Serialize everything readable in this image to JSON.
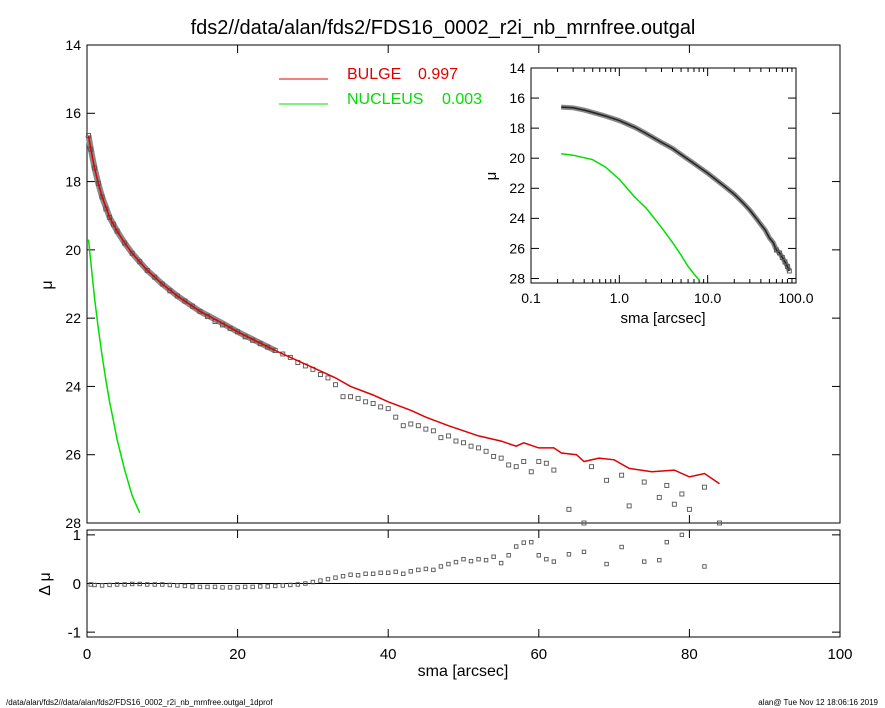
{
  "title": "fds2//data/alan/fds2/FDS16_0002_r2i_nb_mrnfree.outgal",
  "footer_left": "/data/alan/fds2//data/alan/fds2/FDS16_0002_r2i_nb_mrnfree.outgal_1dprof",
  "footer_right": "alan@  Tue Nov 12 18:06:16 2019",
  "colors": {
    "bulge": "#e00000",
    "nucleus": "#00e000",
    "data": "#555555",
    "axes": "#000000"
  },
  "chart_data": [
    {
      "id": "main",
      "type": "scatter",
      "ylabel": "μ",
      "xlim": [
        0,
        100
      ],
      "ylim": [
        28,
        14
      ],
      "xticks": [
        "0",
        "20",
        "40",
        "60",
        "80",
        "100"
      ],
      "yticks": [
        "14",
        "16",
        "18",
        "20",
        "22",
        "24",
        "26",
        "28"
      ],
      "legend": [
        {
          "label": "BULGE",
          "value": "0.997",
          "color": "#e00000"
        },
        {
          "label": "NUCLEUS",
          "value": "0.003",
          "color": "#00e000"
        }
      ],
      "legend_position": "top-center",
      "series": [
        {
          "name": "BULGE",
          "kind": "line",
          "x": [
            0.2,
            0.5,
            1,
            1.5,
            2,
            3,
            4,
            5,
            6,
            8,
            10,
            12,
            15,
            18,
            20,
            25,
            30,
            33,
            35,
            38,
            40,
            43,
            45,
            48,
            50,
            52,
            55,
            57,
            58,
            60,
            62,
            63,
            65,
            66,
            68,
            70,
            72,
            75,
            78,
            80,
            82,
            84
          ],
          "y": [
            16.65,
            17.05,
            17.6,
            18.05,
            18.45,
            19.05,
            19.45,
            19.8,
            20.1,
            20.6,
            21.0,
            21.35,
            21.8,
            22.15,
            22.4,
            22.95,
            23.45,
            23.75,
            24.0,
            24.25,
            24.45,
            24.7,
            24.9,
            25.15,
            25.3,
            25.45,
            25.6,
            25.75,
            25.65,
            25.8,
            25.8,
            25.95,
            26.0,
            26.2,
            26.1,
            26.15,
            26.4,
            26.5,
            26.45,
            26.65,
            26.55,
            26.85
          ]
        },
        {
          "name": "NUCLEUS",
          "kind": "line",
          "x": [
            0.2,
            0.5,
            1,
            1.5,
            2,
            2.5,
            3,
            3.5,
            4,
            5,
            6,
            7,
            8
          ],
          "y": [
            19.7,
            20.35,
            21.4,
            22.3,
            23.1,
            23.8,
            24.45,
            25.0,
            25.55,
            26.45,
            27.2,
            27.7,
            28.1
          ]
        },
        {
          "name": "data",
          "kind": "points",
          "x": [
            0.2,
            0.5,
            1,
            1.5,
            2,
            2.5,
            3,
            3.5,
            4,
            5,
            6,
            7,
            8,
            9,
            10,
            11,
            12,
            13,
            14,
            15,
            16,
            17,
            18,
            19,
            20,
            21,
            22,
            23,
            24,
            25,
            26,
            27,
            28,
            29,
            30,
            31,
            32,
            33,
            34,
            35,
            36,
            37,
            38,
            39,
            40,
            41,
            42,
            43,
            44,
            45,
            46,
            47,
            48,
            49,
            50,
            51,
            52,
            53,
            54,
            55,
            56,
            57,
            58,
            59,
            60,
            61,
            62,
            64,
            66,
            67,
            69,
            71,
            72,
            74,
            76,
            77,
            78,
            79,
            80,
            82,
            84
          ],
          "y": [
            16.65,
            17.05,
            17.6,
            18.05,
            18.45,
            18.8,
            19.05,
            19.25,
            19.45,
            19.8,
            20.1,
            20.35,
            20.6,
            20.8,
            21.0,
            21.2,
            21.35,
            21.5,
            21.65,
            21.8,
            21.95,
            22.1,
            22.2,
            22.3,
            22.4,
            22.55,
            22.65,
            22.75,
            22.85,
            22.95,
            23.05,
            23.15,
            23.3,
            23.4,
            23.5,
            23.65,
            23.75,
            23.95,
            24.3,
            24.3,
            24.35,
            24.45,
            24.5,
            24.6,
            24.65,
            24.9,
            25.15,
            25.1,
            25.15,
            25.25,
            25.3,
            25.5,
            25.45,
            25.6,
            25.65,
            25.75,
            25.8,
            25.9,
            26.05,
            26.1,
            26.3,
            26.35,
            26.2,
            26.5,
            26.2,
            26.25,
            26.45,
            27.6,
            28.0,
            26.35,
            26.75,
            26.6,
            27.5,
            26.8,
            27.25,
            26.9,
            27.45,
            27.15,
            27.6,
            26.95,
            28.0
          ]
        }
      ]
    },
    {
      "id": "residual",
      "type": "scatter",
      "ylabel": "Δ μ",
      "xlabel": "sma [arcsec]",
      "xlim": [
        0,
        100
      ],
      "ylim": [
        -1.1,
        1.1
      ],
      "xticks": [
        "0",
        "20",
        "40",
        "60",
        "80",
        "100"
      ],
      "yticks": [
        "1",
        "0",
        "-1"
      ],
      "zero_line": true,
      "series": [
        {
          "name": "residual",
          "x": [
            0.5,
            1,
            2,
            3,
            4,
            5,
            6,
            7,
            8,
            9,
            10,
            11,
            12,
            13,
            14,
            15,
            16,
            17,
            18,
            19,
            20,
            21,
            22,
            23,
            24,
            25,
            26,
            27,
            28,
            29,
            30,
            31,
            32,
            33,
            34,
            35,
            36,
            37,
            38,
            39,
            40,
            41,
            42,
            43,
            44,
            45,
            46,
            47,
            48,
            49,
            50,
            51,
            52,
            53,
            54,
            55,
            56,
            57,
            58,
            59,
            60,
            61,
            62,
            64,
            66,
            69,
            71,
            74,
            76,
            77,
            79,
            82
          ],
          "y": [
            -0.02,
            -0.03,
            -0.04,
            -0.03,
            -0.02,
            -0.02,
            -0.01,
            -0.01,
            -0.02,
            -0.02,
            -0.02,
            -0.03,
            -0.04,
            -0.05,
            -0.06,
            -0.07,
            -0.07,
            -0.07,
            -0.08,
            -0.08,
            -0.08,
            -0.07,
            -0.07,
            -0.06,
            -0.06,
            -0.05,
            -0.04,
            -0.03,
            -0.02,
            0.0,
            0.03,
            0.06,
            0.09,
            0.12,
            0.15,
            0.18,
            0.17,
            0.2,
            0.2,
            0.22,
            0.22,
            0.24,
            0.2,
            0.25,
            0.28,
            0.3,
            0.28,
            0.35,
            0.4,
            0.44,
            0.5,
            0.46,
            0.5,
            0.48,
            0.55,
            0.42,
            0.58,
            0.76,
            0.84,
            0.85,
            0.58,
            0.5,
            0.45,
            0.6,
            0.65,
            0.4,
            0.75,
            0.45,
            0.48,
            0.85,
            1.0,
            0.35
          ]
        }
      ]
    },
    {
      "id": "inset",
      "type": "scatter",
      "ylabel": "μ",
      "xlabel": "sma [arcsec]",
      "xscale": "log",
      "xlim": [
        0.1,
        100
      ],
      "ylim": [
        28.3,
        14
      ],
      "xticks": [
        "0.1",
        "1.0",
        "10.0",
        "100.0"
      ],
      "yticks": [
        "14",
        "16",
        "18",
        "20",
        "22",
        "24",
        "26",
        "28"
      ],
      "series": [
        {
          "name": "data",
          "x": [
            0.22,
            0.3,
            0.4,
            0.5,
            0.7,
            1.0,
            1.5,
            2.0,
            3.0,
            4.0,
            5.0,
            7.0,
            10.0,
            15.0,
            20.0,
            25.0,
            30.0,
            35.0,
            40.0,
            45.0,
            50.0,
            55.0,
            60.0,
            65.0,
            70.0,
            75.0,
            80.0,
            84.0
          ],
          "y": [
            16.6,
            16.65,
            16.8,
            16.95,
            17.2,
            17.5,
            17.95,
            18.35,
            18.95,
            19.35,
            19.75,
            20.35,
            21.0,
            21.8,
            22.4,
            22.95,
            23.45,
            23.95,
            24.4,
            24.8,
            25.3,
            25.6,
            26.1,
            26.3,
            26.6,
            26.9,
            27.2,
            27.5
          ]
        },
        {
          "name": "NUCLEUS",
          "x": [
            0.22,
            0.3,
            0.5,
            0.7,
            1.0,
            1.5,
            2.0,
            3.0,
            4.0,
            5.0,
            6.0,
            7.0,
            8.0
          ],
          "y": [
            19.7,
            19.8,
            20.1,
            20.6,
            21.4,
            22.6,
            23.3,
            24.6,
            25.6,
            26.45,
            27.2,
            27.7,
            28.1
          ]
        }
      ]
    }
  ]
}
